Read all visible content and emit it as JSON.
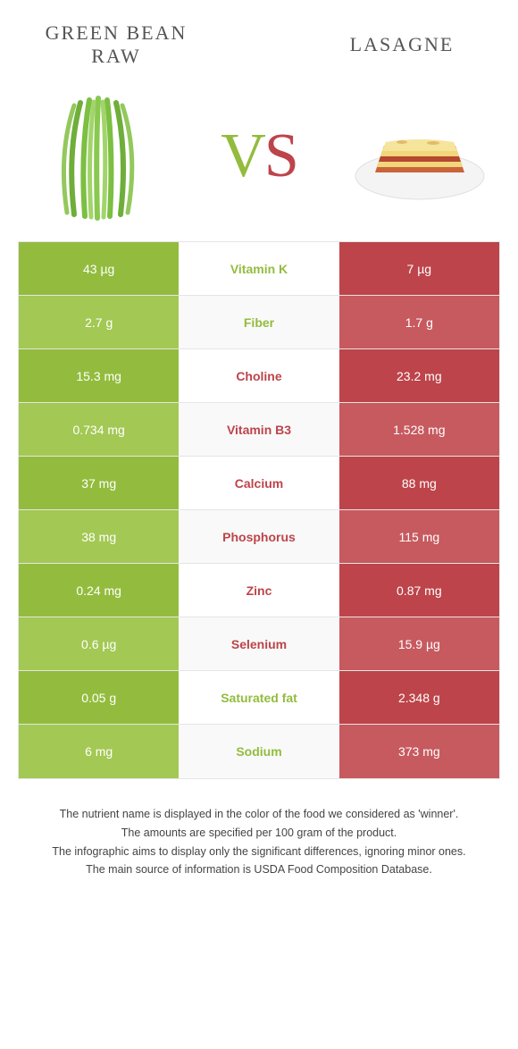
{
  "colors": {
    "green_bean": "#93bc3e",
    "green_bean_alt": "#a3c854",
    "lasagne": "#bd444a",
    "lasagne_alt": "#c75a5f",
    "row_bg_even": "#f9f9f9",
    "text_mid_green": "#93bc3e",
    "text_mid_red": "#bd444a",
    "border": "#e5e5e5"
  },
  "header": {
    "left_title": "GREEN BEAN RAW",
    "right_title": "LASAGNE",
    "vs_v": "V",
    "vs_s": "S"
  },
  "table": {
    "rows": [
      {
        "nutrient": "Vitamin K",
        "left": "43 µg",
        "right": "7 µg",
        "winner": "left"
      },
      {
        "nutrient": "Fiber",
        "left": "2.7 g",
        "right": "1.7 g",
        "winner": "left"
      },
      {
        "nutrient": "Choline",
        "left": "15.3 mg",
        "right": "23.2 mg",
        "winner": "right"
      },
      {
        "nutrient": "Vitamin B3",
        "left": "0.734 mg",
        "right": "1.528 mg",
        "winner": "right"
      },
      {
        "nutrient": "Calcium",
        "left": "37 mg",
        "right": "88 mg",
        "winner": "right"
      },
      {
        "nutrient": "Phosphorus",
        "left": "38 mg",
        "right": "115 mg",
        "winner": "right"
      },
      {
        "nutrient": "Zinc",
        "left": "0.24 mg",
        "right": "0.87 mg",
        "winner": "right"
      },
      {
        "nutrient": "Selenium",
        "left": "0.6 µg",
        "right": "15.9 µg",
        "winner": "right"
      },
      {
        "nutrient": "Saturated fat",
        "left": "0.05 g",
        "right": "2.348 g",
        "winner": "left"
      },
      {
        "nutrient": "Sodium",
        "left": "6 mg",
        "right": "373 mg",
        "winner": "left"
      }
    ]
  },
  "footer": {
    "line1": "The nutrient name is displayed in the color of the food we considered as 'winner'.",
    "line2": "The amounts are specified per 100 gram of the product.",
    "line3": "The infographic aims to display only the significant differences, ignoring minor ones.",
    "line4": "The main source of information is USDA Food Composition Database."
  }
}
